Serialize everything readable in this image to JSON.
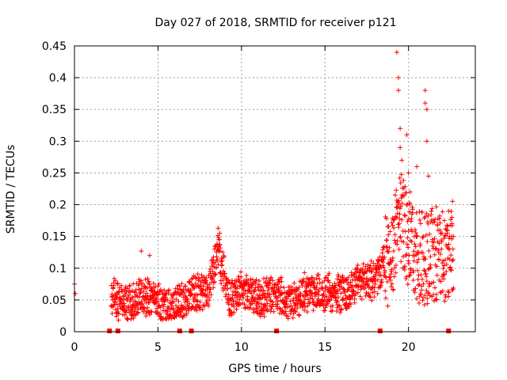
{
  "chart_data": {
    "type": "scatter",
    "title": "Day 027 of 2018, SRMTID for receiver p121",
    "xlabel": "GPS time / hours",
    "ylabel": "SRMTID / TECUs",
    "xlim": [
      0,
      24
    ],
    "ylim": [
      0,
      0.45
    ],
    "x_ticks": [
      0,
      5,
      10,
      15,
      20
    ],
    "y_ticks": [
      0,
      0.05,
      0.1,
      0.15,
      0.2,
      0.25,
      0.3,
      0.35,
      0.4,
      0.45
    ],
    "x_tick_labels": [
      "0",
      "5",
      "10",
      "15",
      "20"
    ],
    "y_tick_labels": [
      "0",
      "0.05",
      "0.1",
      "0.15",
      "0.2",
      "0.25",
      "0.3",
      "0.35",
      "0.4",
      "0.45"
    ],
    "grid": true,
    "marker": "+",
    "marker_color": "#ff0000",
    "series": [
      {
        "name": "SRMTID",
        "envelope": [
          {
            "x": 0.0,
            "y": 0.07
          },
          {
            "x": 2.2,
            "y": 0.06
          },
          {
            "x": 3.0,
            "y": 0.04
          },
          {
            "x": 4.0,
            "y": 0.055
          },
          {
            "x": 5.0,
            "y": 0.05
          },
          {
            "x": 5.8,
            "y": 0.035
          },
          {
            "x": 7.0,
            "y": 0.06
          },
          {
            "x": 8.0,
            "y": 0.065
          },
          {
            "x": 8.6,
            "y": 0.13
          },
          {
            "x": 9.3,
            "y": 0.05
          },
          {
            "x": 10.0,
            "y": 0.07
          },
          {
            "x": 11.0,
            "y": 0.05
          },
          {
            "x": 12.0,
            "y": 0.06
          },
          {
            "x": 13.0,
            "y": 0.045
          },
          {
            "x": 14.0,
            "y": 0.065
          },
          {
            "x": 15.0,
            "y": 0.06
          },
          {
            "x": 16.0,
            "y": 0.06
          },
          {
            "x": 17.0,
            "y": 0.08
          },
          {
            "x": 18.0,
            "y": 0.08
          },
          {
            "x": 18.5,
            "y": 0.11
          },
          {
            "x": 19.0,
            "y": 0.12
          },
          {
            "x": 19.4,
            "y": 0.19
          },
          {
            "x": 20.0,
            "y": 0.14
          },
          {
            "x": 21.0,
            "y": 0.11
          },
          {
            "x": 21.5,
            "y": 0.12
          },
          {
            "x": 22.0,
            "y": 0.12
          },
          {
            "x": 22.4,
            "y": 0.13
          }
        ],
        "peaks": [
          {
            "x": 0.0,
            "y": 0.075
          },
          {
            "x": 0.05,
            "y": 0.06
          },
          {
            "x": 4.0,
            "y": 0.127
          },
          {
            "x": 4.5,
            "y": 0.12
          },
          {
            "x": 8.6,
            "y": 0.163
          },
          {
            "x": 8.7,
            "y": 0.155
          },
          {
            "x": 19.3,
            "y": 0.44
          },
          {
            "x": 19.4,
            "y": 0.4
          },
          {
            "x": 19.4,
            "y": 0.38
          },
          {
            "x": 19.5,
            "y": 0.32
          },
          {
            "x": 19.5,
            "y": 0.29
          },
          {
            "x": 19.6,
            "y": 0.27
          },
          {
            "x": 19.9,
            "y": 0.31
          },
          {
            "x": 20.0,
            "y": 0.25
          },
          {
            "x": 20.1,
            "y": 0.22
          },
          {
            "x": 20.5,
            "y": 0.26
          },
          {
            "x": 21.0,
            "y": 0.38
          },
          {
            "x": 21.0,
            "y": 0.36
          },
          {
            "x": 21.1,
            "y": 0.35
          },
          {
            "x": 21.1,
            "y": 0.3
          },
          {
            "x": 21.2,
            "y": 0.245
          },
          {
            "x": 22.4,
            "y": 0.19
          },
          {
            "x": 22.6,
            "y": 0.18
          },
          {
            "x": 22.6,
            "y": 0.17
          }
        ]
      }
    ],
    "gap_markers_x": [
      2.1,
      2.6,
      6.3,
      7.0,
      12.1,
      18.3,
      22.4
    ]
  }
}
